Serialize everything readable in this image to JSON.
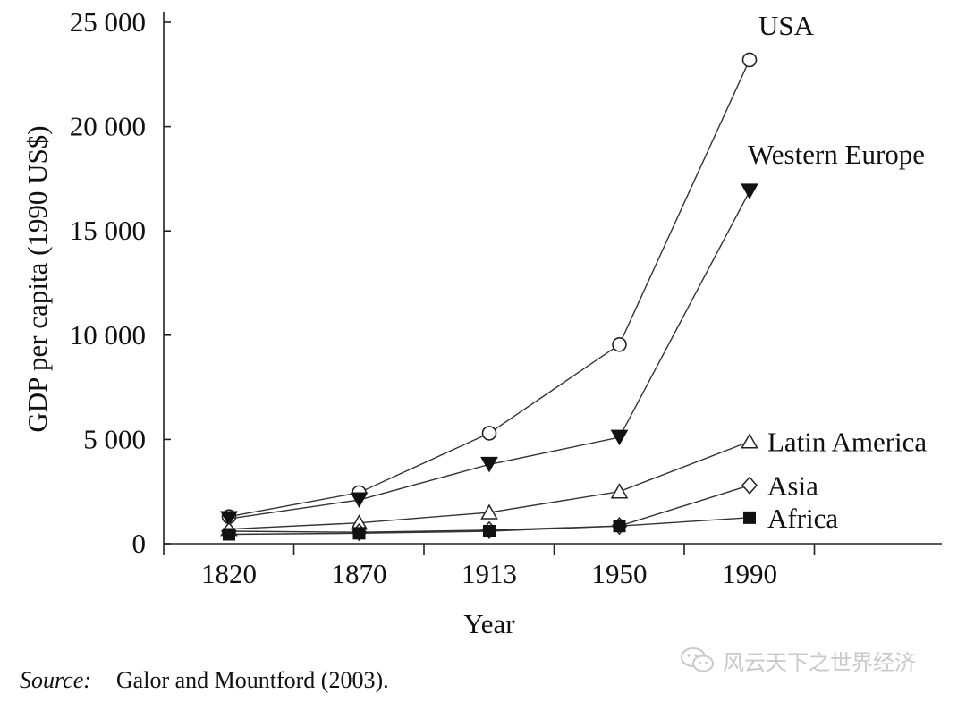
{
  "chart_data": {
    "type": "line",
    "ylabel": "GDP per capita (1990 US$)",
    "xlabel": "Year",
    "categories": [
      "1820",
      "1870",
      "1913",
      "1950",
      "1990"
    ],
    "ylim": [
      0,
      25000
    ],
    "yticks": [
      0,
      5000,
      10000,
      15000,
      20000,
      25000
    ],
    "ytick_labels": [
      "0",
      "5 000",
      "10 000",
      "15 000",
      "20 000",
      "25 000"
    ],
    "grid": false,
    "legend": "direct labels at right end of each series",
    "series": [
      {
        "name": "USA",
        "marker": "open-circle",
        "values": [
          1300,
          2450,
          5300,
          9550,
          23200
        ]
      },
      {
        "name": "Western Europe",
        "marker": "filled-triangle-down",
        "values": [
          1200,
          2100,
          3800,
          5100,
          16900
        ]
      },
      {
        "name": "Latin America",
        "marker": "open-triangle-up",
        "values": [
          700,
          1000,
          1500,
          2500,
          4900
        ]
      },
      {
        "name": "Asia",
        "marker": "open-diamond",
        "values": [
          600,
          550,
          650,
          850,
          2800
        ]
      },
      {
        "name": "Africa",
        "marker": "filled-square",
        "values": [
          450,
          500,
          600,
          850,
          1250
        ]
      }
    ]
  },
  "source": {
    "label": "Source",
    "separator": ":",
    "text": "Galor and Mountford (2003)."
  },
  "watermark": {
    "text": "风云天下之世界经济",
    "icon": "chat-bubbles-icon"
  }
}
